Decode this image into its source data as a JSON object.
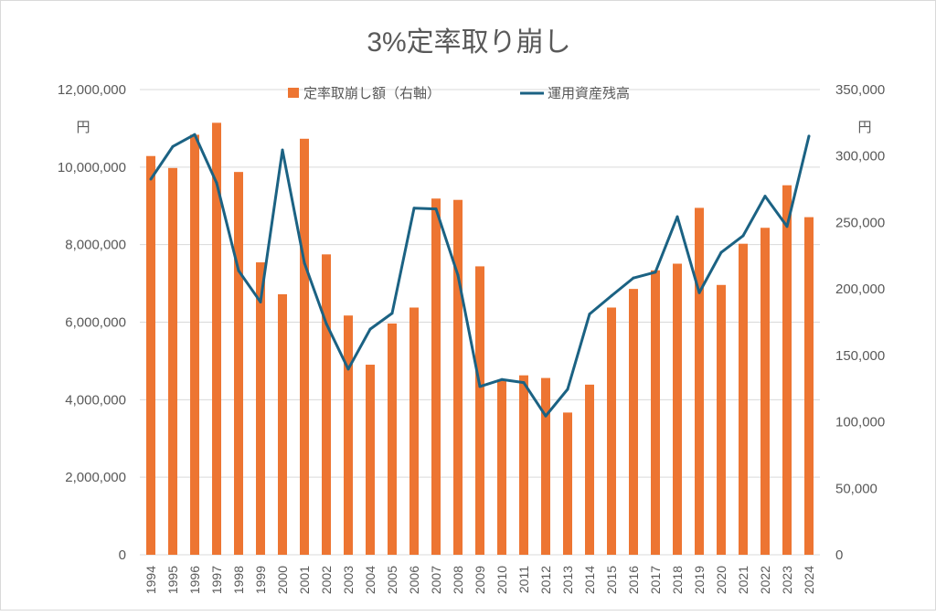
{
  "chart_data": {
    "type": "bar+line",
    "title": "3%定率取り崩し",
    "left_axis": {
      "unit_label": "円",
      "range": [
        0,
        12000000
      ],
      "ticks": [
        "0",
        "2,000,000",
        "4,000,000",
        "6,000,000",
        "8,000,000",
        "10,000,000",
        "12,000,000"
      ],
      "tick_values": [
        0,
        2000000,
        4000000,
        6000000,
        8000000,
        10000000,
        12000000
      ]
    },
    "right_axis": {
      "unit_label": "円",
      "range": [
        0,
        350000
      ],
      "ticks": [
        "0",
        "50,000",
        "100,000",
        "150,000",
        "200,000",
        "250,000",
        "300,000",
        "350,000"
      ],
      "tick_values": [
        0,
        50000,
        100000,
        150000,
        200000,
        250000,
        300000,
        350000
      ]
    },
    "grid": true,
    "legend_position": "top",
    "categories": [
      "1994",
      "1995",
      "1996",
      "1997",
      "1998",
      "1999",
      "2000",
      "2001",
      "2002",
      "2003",
      "2004",
      "2005",
      "2006",
      "2007",
      "2008",
      "2009",
      "2010",
      "2011",
      "2012",
      "2013",
      "2014",
      "2015",
      "2016",
      "2017",
      "2018",
      "2019",
      "2020",
      "2021",
      "2022",
      "2023",
      "2024"
    ],
    "series": [
      {
        "name": "定率取崩し額（右軸）",
        "type": "bar",
        "axis": "right",
        "color": "#ED7532",
        "values": [
          300000,
          291000,
          316000,
          325000,
          288000,
          220000,
          196000,
          313000,
          226000,
          180000,
          143000,
          174000,
          186000,
          268000,
          267000,
          217000,
          131000,
          135000,
          133000,
          107000,
          128000,
          186000,
          200000,
          214000,
          219000,
          261000,
          203000,
          234000,
          246000,
          278000,
          254000
        ]
      },
      {
        "name": "運用資産残高",
        "type": "line",
        "axis": "left",
        "color": "#1B6283",
        "values": [
          9690000,
          10530000,
          10840000,
          9590000,
          7330000,
          6520000,
          10440000,
          7530000,
          5960000,
          4790000,
          5820000,
          6230000,
          8940000,
          8920000,
          7210000,
          4340000,
          4520000,
          4440000,
          3580000,
          4270000,
          6210000,
          6680000,
          7140000,
          7290000,
          8720000,
          6760000,
          7800000,
          8230000,
          9250000,
          8470000,
          10800000
        ]
      }
    ]
  }
}
